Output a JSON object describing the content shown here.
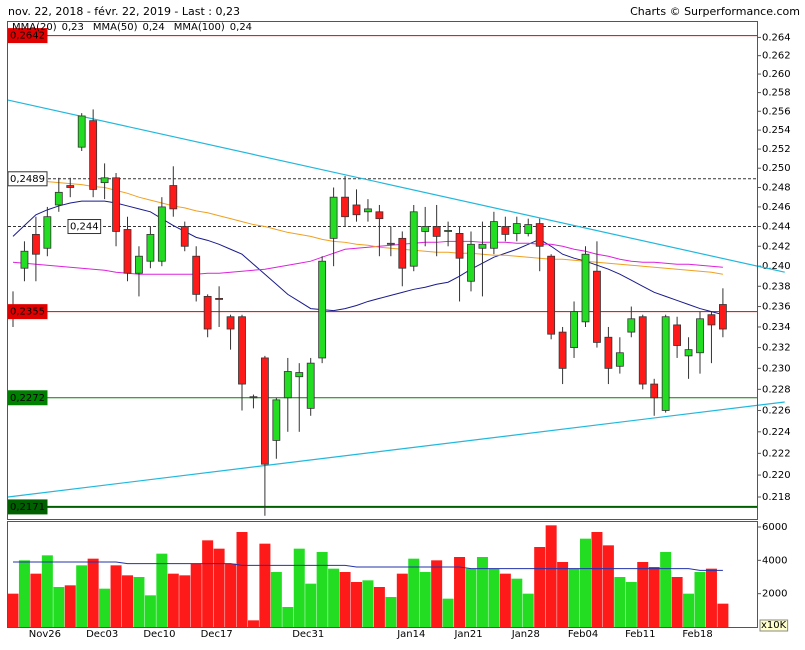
{
  "header": {
    "title": "nov. 22, 2018 - févr. 22, 2019 - Last : 0,23",
    "source": "Charts © Surperformance.com"
  },
  "chart_data": {
    "type": "candlestick",
    "log_scale": true,
    "categories": [
      null,
      null,
      "Nov26",
      null,
      null,
      null,
      null,
      "Dec03",
      null,
      null,
      null,
      null,
      "Dec10",
      null,
      null,
      null,
      null,
      "Dec17",
      null,
      null,
      null,
      null,
      null,
      null,
      null,
      "Dec31",
      null,
      null,
      null,
      null,
      null,
      null,
      null,
      null,
      "Jan14",
      null,
      null,
      null,
      null,
      "Jan21",
      null,
      null,
      null,
      null,
      "Jan28",
      null,
      null,
      null,
      null,
      "Feb04",
      null,
      null,
      null,
      null,
      "Feb11",
      null,
      null,
      null,
      null,
      "Feb18",
      null,
      null,
      null
    ],
    "open": [
      0.236,
      0.2398,
      0.2432,
      0.2418,
      0.2462,
      0.2482,
      0.2522,
      0.255,
      0.2485,
      0.249,
      0.2437,
      0.2393,
      0.2405,
      0.2405,
      0.2482,
      0.244,
      0.241,
      0.237,
      0.2368,
      0.235,
      0.235,
      0.2273,
      0.231,
      0.2232,
      0.2272,
      0.2292,
      0.2262,
      0.231,
      0.2428,
      0.247,
      0.2462,
      0.2455,
      0.2455,
      0.2422,
      0.2428,
      0.24,
      0.2435,
      0.244,
      0.2435,
      0.2433,
      0.2385,
      0.2418,
      0.2418,
      0.244,
      0.2433,
      0.2433,
      0.2443,
      0.241,
      0.2335,
      0.232,
      0.2345,
      0.2395,
      0.233,
      0.2302,
      0.2335,
      0.235,
      0.2285,
      0.226,
      0.2342,
      0.2312,
      0.2315,
      0.2352,
      0.2362
    ],
    "high": [
      0.2375,
      0.2425,
      0.245,
      0.246,
      0.249,
      0.249,
      0.2558,
      0.2562,
      0.2505,
      0.2495,
      0.245,
      0.242,
      0.244,
      0.247,
      0.2502,
      0.2445,
      0.242,
      0.2372,
      0.238,
      0.2352,
      0.2352,
      0.2275,
      0.2312,
      0.2272,
      0.231,
      0.2305,
      0.231,
      0.241,
      0.248,
      0.2492,
      0.2478,
      0.2468,
      0.2462,
      0.244,
      0.2435,
      0.2462,
      0.246,
      0.2462,
      0.2445,
      0.244,
      0.2435,
      0.2445,
      0.2455,
      0.245,
      0.245,
      0.2448,
      0.2448,
      0.2412,
      0.234,
      0.2365,
      0.242,
      0.2425,
      0.234,
      0.233,
      0.236,
      0.2352,
      0.229,
      0.2352,
      0.235,
      0.233,
      0.2355,
      0.2355,
      0.2378
    ],
    "low": [
      0.234,
      0.2385,
      0.2385,
      0.241,
      0.2455,
      0.247,
      0.2518,
      0.247,
      0.2468,
      0.242,
      0.2385,
      0.237,
      0.2398,
      0.24,
      0.245,
      0.2415,
      0.2365,
      0.233,
      0.234,
      0.2318,
      0.226,
      0.2262,
      0.2163,
      0.2215,
      0.224,
      0.224,
      0.2255,
      0.2305,
      0.24,
      0.244,
      0.2445,
      0.2445,
      0.241,
      0.241,
      0.238,
      0.2395,
      0.242,
      0.241,
      0.242,
      0.2365,
      0.2375,
      0.237,
      0.2412,
      0.2425,
      0.2425,
      0.243,
      0.2395,
      0.2328,
      0.2285,
      0.231,
      0.234,
      0.232,
      0.2285,
      0.2295,
      0.233,
      0.228,
      0.2255,
      0.2258,
      0.231,
      0.229,
      0.2295,
      0.2305,
      0.233
    ],
    "close": [
      0.2355,
      0.2415,
      0.2412,
      0.245,
      0.2475,
      0.248,
      0.2555,
      0.2478,
      0.249,
      0.2435,
      0.2393,
      0.241,
      0.2432,
      0.246,
      0.2458,
      0.242,
      0.2372,
      0.2338,
      0.2367,
      0.2338,
      0.2285,
      0.2272,
      0.221,
      0.227,
      0.2297,
      0.2296,
      0.2305,
      0.2405,
      0.247,
      0.245,
      0.2452,
      0.2458,
      0.2448,
      0.2423,
      0.2398,
      0.2455,
      0.244,
      0.243,
      0.2436,
      0.2408,
      0.2422,
      0.2422,
      0.2445,
      0.2432,
      0.2443,
      0.2442,
      0.242,
      0.2333,
      0.23,
      0.2355,
      0.2412,
      0.2325,
      0.23,
      0.2315,
      0.2348,
      0.2285,
      0.2272,
      0.235,
      0.2322,
      0.2318,
      0.2348,
      0.2342,
      0.2338
    ],
    "up_color": "#22dd22",
    "down_color": "#ff1a1a",
    "ylim": [
      0.2161,
      0.2657
    ],
    "yticks": [
      0.218,
      {
        "value": 0.22,
        "label": "0.220"
      },
      0.222,
      0.224,
      0.226,
      0.228,
      {
        "value": 0.23,
        "label": "0.230"
      },
      0.232,
      0.234,
      0.236,
      0.238,
      {
        "value": 0.24,
        "label": "0.240"
      },
      0.242,
      0.244,
      0.246,
      0.248,
      {
        "value": 0.25,
        "label": "0.250"
      },
      0.252,
      0.254,
      0.256,
      0.258,
      {
        "value": 0.26,
        "label": "0.260"
      },
      0.262,
      0.264
    ],
    "moving_averages": [
      {
        "name": "MMA(20)",
        "last_label": "0,23",
        "color": "#1a1a8c",
        "values": [
          0.243,
          0.2441,
          0.2452,
          0.2457,
          0.2461,
          0.2464,
          0.2466,
          0.2466,
          0.2466,
          0.2464,
          0.2461,
          0.2458,
          0.2455,
          0.2448,
          0.2441,
          0.2435,
          0.2429,
          0.2426,
          0.2422,
          0.2417,
          0.2412,
          0.2402,
          0.2392,
          0.2382,
          0.2372,
          0.2365,
          0.2358,
          0.2357,
          0.2356,
          0.2358,
          0.2361,
          0.2365,
          0.2368,
          0.2371,
          0.2374,
          0.2377,
          0.2379,
          0.2382,
          0.2384,
          0.239,
          0.2397,
          0.2403,
          0.2409,
          0.2413,
          0.2417,
          0.2422,
          0.2427,
          0.242,
          0.2412,
          0.2408,
          0.2405,
          0.2401,
          0.2397,
          0.2392,
          0.2386,
          0.238,
          0.2374,
          0.237,
          0.2366,
          0.2362,
          0.2358,
          0.2355,
          0.2352
        ]
      },
      {
        "name": "MMA(50)",
        "last_label": "0,24",
        "color": "#dd22dd",
        "values": [
          0.2404,
          0.2403,
          0.2402,
          0.2401,
          0.24,
          0.2399,
          0.2398,
          0.2397,
          0.2396,
          0.2394,
          0.2393,
          0.2392,
          0.2392,
          0.2392,
          0.2392,
          0.2392,
          0.2392,
          0.2393,
          0.2393,
          0.2394,
          0.2395,
          0.2396,
          0.2397,
          0.2399,
          0.2401,
          0.2403,
          0.2405,
          0.2409,
          0.2413,
          0.2417,
          0.2418,
          0.2419,
          0.242,
          0.2421,
          0.2422,
          0.2423,
          0.2424,
          0.2424,
          0.2425,
          0.2425,
          0.2425,
          0.2424,
          0.2424,
          0.2424,
          0.2423,
          0.2423,
          0.2422,
          0.2422,
          0.242,
          0.2417,
          0.2415,
          0.2412,
          0.241,
          0.2407,
          0.2405,
          0.2404,
          0.2404,
          0.2403,
          0.2402,
          0.2402,
          0.2401,
          0.24,
          0.2399
        ]
      },
      {
        "name": "MMA(100)",
        "last_label": "0,24",
        "color": "#f0a020",
        "values": [
          0.249,
          0.2489,
          0.2488,
          0.2486,
          0.2485,
          0.2484,
          0.2483,
          0.2481,
          0.248,
          0.2477,
          0.2474,
          0.247,
          0.2467,
          0.2464,
          0.2461,
          0.2459,
          0.2456,
          0.2454,
          0.2451,
          0.2448,
          0.2445,
          0.2442,
          0.244,
          0.2437,
          0.2434,
          0.2432,
          0.243,
          0.2427,
          0.2425,
          0.2424,
          0.2422,
          0.2421,
          0.2419,
          0.2418,
          0.2417,
          0.2416,
          0.2415,
          0.2414,
          0.2414,
          0.2413,
          0.2413,
          0.2412,
          0.2411,
          0.2411,
          0.241,
          0.2409,
          0.2408,
          0.2407,
          0.2407,
          0.2406,
          0.2405,
          0.2404,
          0.2403,
          0.2402,
          0.2401,
          0.24,
          0.2399,
          0.2398,
          0.2397,
          0.2396,
          0.2395,
          0.2394,
          0.2392
        ]
      }
    ],
    "levels": [
      {
        "value": 0.2642,
        "label": "0,2642",
        "color": "#e00000",
        "dashed": false
      },
      {
        "value": 0.2489,
        "label": "0,2489",
        "color": "#333333",
        "dashed": true
      },
      {
        "value": 0.244,
        "label": "0,244",
        "color": "#333333",
        "dashed": true
      },
      {
        "value": 0.2355,
        "label": "0,2355",
        "color": "#e00000",
        "dashed": false
      },
      {
        "value": 0.2272,
        "label": "0,2272",
        "color": "#008000",
        "dashed": false
      },
      {
        "value": 0.2171,
        "label": "0,2171",
        "color": "#006000",
        "dashed": false
      }
    ],
    "trendlines": [
      {
        "color": "#22b8dd",
        "x": [
          -0.44,
          67.4
        ],
        "y": [
          0.2572,
          0.2394
        ]
      },
      {
        "color": "#22b8dd",
        "x": [
          -0.44,
          67.4
        ],
        "y": [
          0.218,
          0.2268
        ]
      }
    ],
    "volume": {
      "unit_label": "x10K",
      "ylim": [
        0,
        6300
      ],
      "yticks": [
        2000,
        4000,
        6000
      ],
      "ma_color": "#2233aa",
      "values": [
        2000,
        4000,
        3200,
        4300,
        2400,
        2500,
        3700,
        4100,
        2300,
        3700,
        3100,
        3000,
        1900,
        4400,
        3200,
        3100,
        3800,
        5200,
        4700,
        3800,
        5700,
        400,
        5000,
        3300,
        1200,
        4700,
        2600,
        4500,
        3500,
        3300,
        2700,
        2800,
        2400,
        1800,
        3200,
        4100,
        3300,
        4000,
        1700,
        4200,
        3500,
        4200,
        3500,
        3200,
        2900,
        2000,
        4800,
        6100,
        3900,
        3500,
        5300,
        5700,
        4900,
        3000,
        2700,
        3900,
        3600,
        4500,
        3000,
        2000,
        3300,
        3500,
        1400
      ],
      "ma_values": [
        3900,
        3900,
        3900,
        3900,
        3900,
        3900,
        3900,
        3900,
        3900,
        3900,
        3800,
        3800,
        3800,
        3800,
        3800,
        3800,
        3800,
        3800,
        3800,
        3800,
        3700,
        3700,
        3700,
        3700,
        3700,
        3700,
        3700,
        3700,
        3700,
        3700,
        3600,
        3600,
        3600,
        3600,
        3600,
        3600,
        3600,
        3600,
        3600,
        3600,
        3500,
        3500,
        3500,
        3500,
        3500,
        3500,
        3500,
        3500,
        3500,
        3500,
        3500,
        3500,
        3500,
        3500,
        3500,
        3500,
        3500,
        3500,
        3500,
        3500,
        3400,
        3400,
        3400
      ]
    }
  }
}
